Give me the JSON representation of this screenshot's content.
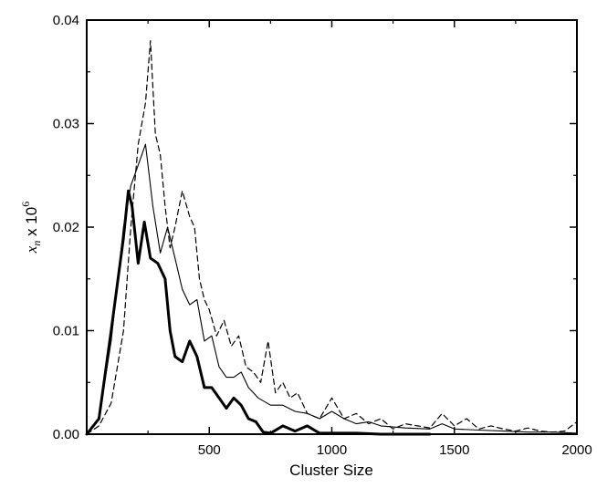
{
  "chart_data": {
    "type": "line",
    "title": "",
    "xlabel": "Cluster Size",
    "ylabel": {
      "symbol": "x",
      "subscript": "n",
      "multiplier": " x 10",
      "exponent": "6"
    },
    "xlim": [
      0,
      2000
    ],
    "ylim": [
      0,
      0.04
    ],
    "x_ticks": [
      500,
      1000,
      1500,
      2000
    ],
    "x_tick_labels": [
      "500",
      "1000",
      "1500",
      "2000"
    ],
    "y_ticks": [
      0,
      0.01,
      0.02,
      0.03,
      0.04
    ],
    "y_tick_labels": [
      "0.00",
      "0.01",
      "0.02",
      "0.03",
      "0.04"
    ],
    "grid": false,
    "legend": "none",
    "series": [
      {
        "style": "dashed",
        "color": "#000000",
        "x": [
          0,
          50,
          100,
          150,
          180,
          210,
          240,
          260,
          280,
          300,
          320,
          340,
          360,
          390,
          420,
          440,
          460,
          480,
          500,
          530,
          560,
          590,
          620,
          650,
          680,
          710,
          740,
          770,
          800,
          830,
          860,
          900,
          950,
          1000,
          1050,
          1100,
          1150,
          1200,
          1250,
          1300,
          1350,
          1400,
          1450,
          1500,
          1550,
          1600,
          1650,
          1700,
          1750,
          1800,
          1850,
          1900,
          1950,
          2000
        ],
        "y": [
          0.0,
          0.0008,
          0.003,
          0.01,
          0.02,
          0.028,
          0.032,
          0.038,
          0.029,
          0.027,
          0.022,
          0.018,
          0.02,
          0.0235,
          0.021,
          0.02,
          0.015,
          0.013,
          0.012,
          0.0095,
          0.011,
          0.0085,
          0.0095,
          0.0065,
          0.006,
          0.005,
          0.009,
          0.004,
          0.005,
          0.0035,
          0.004,
          0.002,
          0.0015,
          0.0035,
          0.0015,
          0.002,
          0.001,
          0.0015,
          0.0005,
          0.001,
          0.0008,
          0.0006,
          0.002,
          0.0008,
          0.0015,
          0.0005,
          0.0008,
          0.0005,
          0.0003,
          0.0006,
          0.0003,
          0.0002,
          0.0003,
          0.0012
        ]
      },
      {
        "style": "solid-thin",
        "color": "#000000",
        "x": [
          0,
          50,
          100,
          150,
          180,
          210,
          240,
          270,
          300,
          330,
          360,
          390,
          420,
          450,
          480,
          510,
          540,
          570,
          600,
          630,
          660,
          700,
          750,
          800,
          850,
          900,
          950,
          1000,
          1050,
          1100,
          1150,
          1200,
          1300,
          1400,
          1450,
          1500,
          1600,
          1700,
          1800,
          1900,
          2000
        ],
        "y": [
          0.0,
          0.0015,
          0.009,
          0.02,
          0.024,
          0.026,
          0.028,
          0.022,
          0.0175,
          0.02,
          0.017,
          0.014,
          0.0125,
          0.013,
          0.009,
          0.0095,
          0.0065,
          0.0055,
          0.0055,
          0.006,
          0.0045,
          0.0035,
          0.0028,
          0.0028,
          0.0022,
          0.002,
          0.0015,
          0.0022,
          0.0015,
          0.001,
          0.0012,
          0.0008,
          0.0006,
          0.0005,
          0.001,
          0.0005,
          0.0004,
          0.0003,
          0.0002,
          0.0002,
          0.0001
        ]
      },
      {
        "style": "solid-thick",
        "color": "#000000",
        "x": [
          0,
          50,
          100,
          150,
          170,
          185,
          210,
          235,
          260,
          290,
          320,
          340,
          360,
          390,
          420,
          450,
          480,
          510,
          540,
          570,
          600,
          630,
          660,
          690,
          720,
          750,
          800,
          850,
          900,
          950,
          1000,
          1100,
          1200,
          1300,
          1400
        ],
        "y": [
          0.0,
          0.0015,
          0.01,
          0.019,
          0.0235,
          0.022,
          0.0165,
          0.0205,
          0.017,
          0.0165,
          0.015,
          0.01,
          0.0075,
          0.007,
          0.009,
          0.0075,
          0.0045,
          0.0045,
          0.0035,
          0.0025,
          0.0035,
          0.0028,
          0.0015,
          0.0012,
          0.0002,
          0.0001,
          0.0008,
          0.0003,
          0.0008,
          0.0001,
          0.0001,
          0.0001,
          0.0,
          0.0,
          0.0
        ]
      }
    ]
  }
}
